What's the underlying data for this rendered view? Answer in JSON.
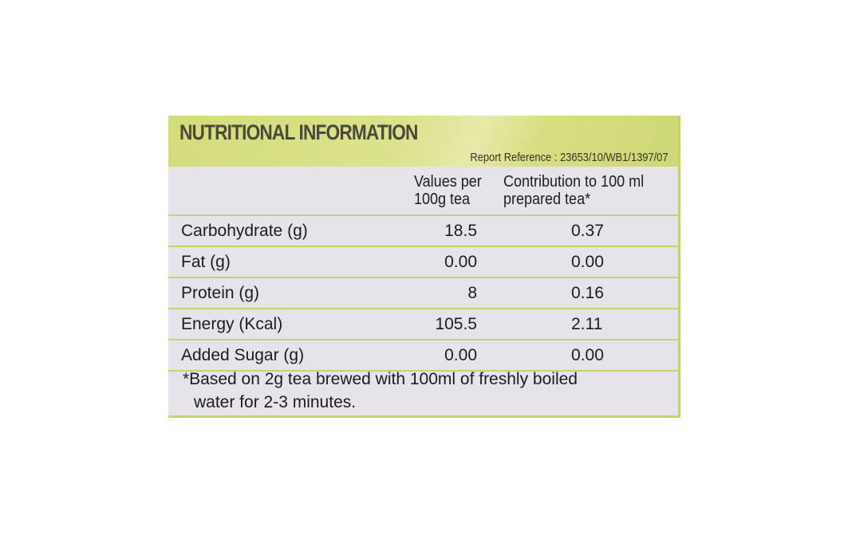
{
  "title": "NUTRITIONAL INFORMATION",
  "report_reference": "Report Reference : 23653/10/WB1/1397/07",
  "columns": {
    "values_line1": "Values per",
    "values_line2": "100g tea",
    "contrib_line1": "Contribution to 100 ml",
    "contrib_line2": "prepared tea*"
  },
  "rows": [
    {
      "name": "Carbohydrate (g)",
      "value": "18.5",
      "contribution": "0.37"
    },
    {
      "name": "Fat (g)",
      "value": "0.00",
      "contribution": "0.00"
    },
    {
      "name": "Protein (g)",
      "value": "8",
      "contribution": "0.16"
    },
    {
      "name": "Energy (Kcal)",
      "value": "105.5",
      "contribution": "2.11"
    },
    {
      "name": "Added Sugar (g)",
      "value": "0.00",
      "contribution": "0.00"
    }
  ],
  "footnote": {
    "line1": "*Based on 2g tea brewed with 100ml of freshly boiled",
    "line2": "water for 2-3 minutes."
  },
  "colors": {
    "header_band": "#d3dc7b",
    "table_background": "#e7e3ea",
    "rule_lines": "#c9d36e"
  }
}
